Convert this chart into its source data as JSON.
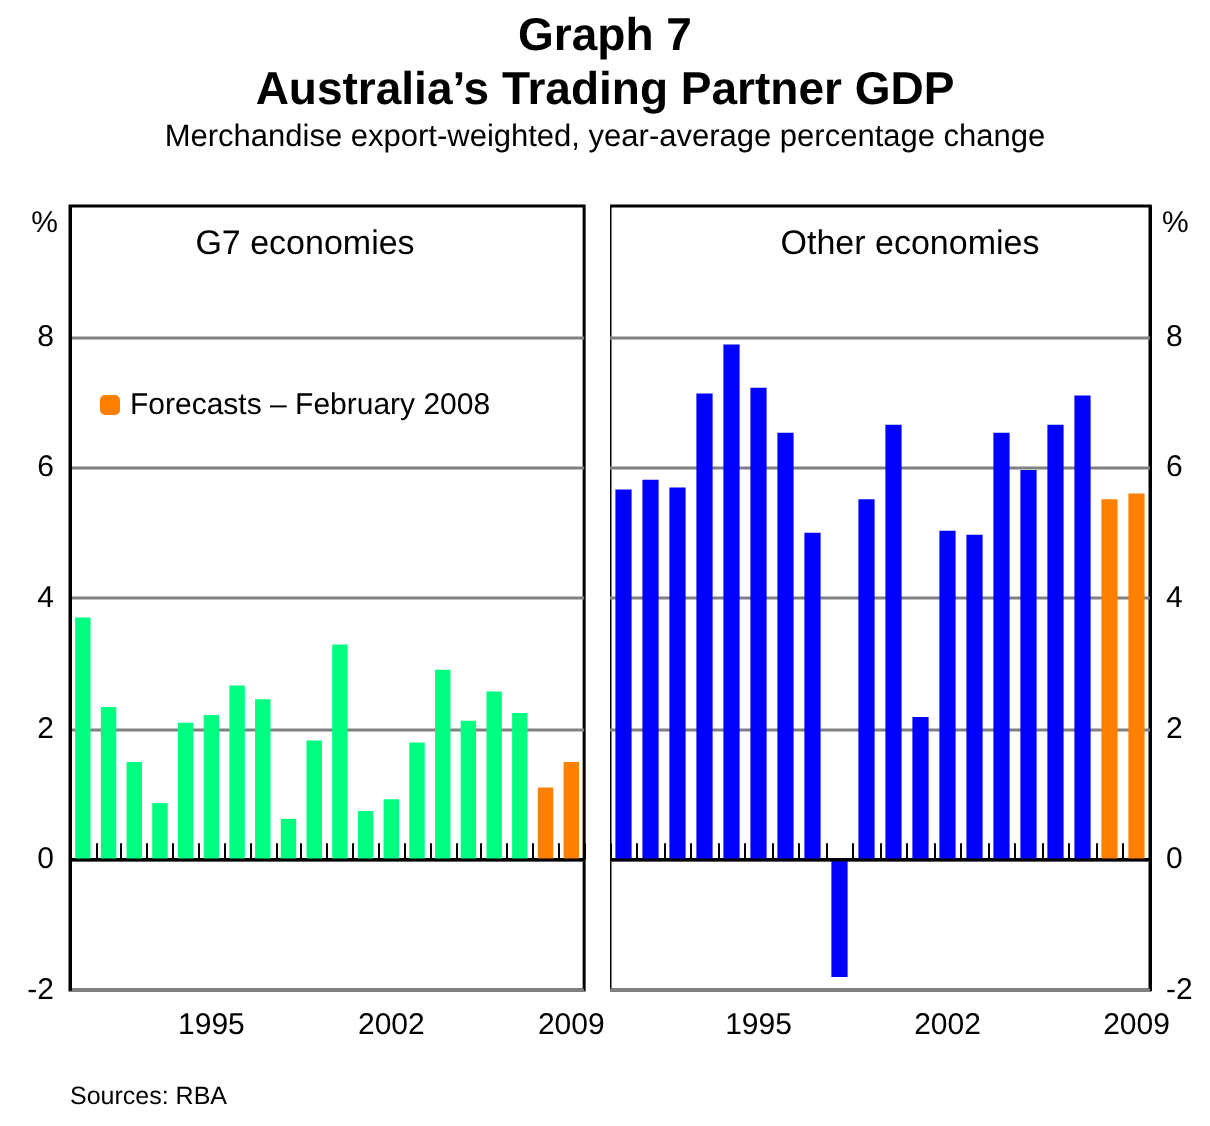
{
  "chart_data": [
    {
      "type": "bar",
      "title": "G7 economies",
      "ylabel": "%",
      "annotations": [
        "Graph 7",
        "Australia’s Trading Partner GDP",
        "Merchandise export-weighted, year-average percentage change",
        "Sources: RBA"
      ],
      "categories": [
        null,
        null,
        null,
        null,
        null,
        "1995",
        null,
        null,
        null,
        null,
        null,
        null,
        "2002",
        null,
        null,
        null,
        null,
        null,
        null,
        "2009"
      ],
      "series": [
        {
          "color": "#00ff80",
          "values": [
            3.7,
            2.33,
            1.49,
            0.86,
            2.09,
            2.21,
            2.66,
            2.45,
            0.62,
            1.82,
            3.29,
            0.74,
            0.92,
            1.79,
            2.9,
            2.12,
            2.57,
            2.24,
            null,
            null
          ]
        },
        {
          "name": "Forecasts – February 2008",
          "color": "#ff8000",
          "values": [
            null,
            null,
            null,
            null,
            null,
            null,
            null,
            null,
            null,
            null,
            null,
            null,
            null,
            null,
            null,
            null,
            null,
            null,
            1.1,
            1.49
          ]
        }
      ],
      "ylim": [
        -2,
        10
      ],
      "yticks": [
        -2,
        0,
        2,
        4,
        6,
        8
      ],
      "grid": "y",
      "legend": "top left",
      "ref_lines": [
        {
          "axis": "y",
          "value": 0,
          "color": "#000000"
        }
      ]
    },
    {
      "type": "bar",
      "title": "Other economies",
      "ylabel": "%",
      "categories": [
        null,
        null,
        null,
        null,
        null,
        "1995",
        null,
        null,
        null,
        null,
        null,
        null,
        "2002",
        null,
        null,
        null,
        null,
        null,
        null,
        "2009"
      ],
      "series": [
        {
          "color": "#0000ff",
          "values": [
            5.66,
            5.81,
            5.69,
            7.13,
            7.88,
            7.22,
            6.53,
            5.0,
            -1.8,
            5.51,
            6.65,
            2.18,
            5.03,
            4.97,
            6.53,
            5.96,
            6.65,
            7.1,
            null,
            null
          ]
        },
        {
          "color": "#ff8000",
          "values": [
            null,
            null,
            null,
            null,
            null,
            null,
            null,
            null,
            null,
            null,
            null,
            null,
            null,
            null,
            null,
            null,
            null,
            null,
            5.51,
            5.6
          ]
        }
      ],
      "ylim": [
        -2,
        10
      ],
      "yticks": [
        -2,
        0,
        2,
        4,
        6,
        8
      ],
      "grid": "y",
      "ref_lines": [
        {
          "axis": "y",
          "value": 0,
          "color": "#000000"
        }
      ]
    }
  ]
}
